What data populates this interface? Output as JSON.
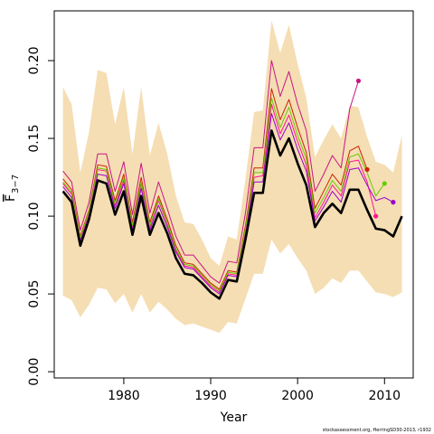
{
  "chart_data": {
    "type": "line",
    "xlabel": "Year",
    "ylabel_main": "F",
    "ylabel_sub": "3−7",
    "footnote": "stockassessment.org, HerringSD30-2013, r1932",
    "xlim": [
      1972,
      2013.3
    ],
    "ylim": [
      -0.004,
      0.232
    ],
    "x_ticks": [
      1980,
      1990,
      2000,
      2010
    ],
    "x_tick_labels": [
      "1980",
      "1990",
      "2000",
      "2010"
    ],
    "y_ticks": [
      0.0,
      0.05,
      0.1,
      0.15,
      0.2
    ],
    "y_tick_labels": [
      "0.00",
      "0.05",
      "0.10",
      "0.15",
      "0.20"
    ],
    "colors": {
      "band": "#f5deb3",
      "main": "#000000",
      "retro": [
        "#c71585",
        "#cc2200",
        "#ff1493",
        "#66cc00",
        "#9900cc"
      ]
    },
    "band": {
      "x": [
        1973,
        1974,
        1975,
        1976,
        1977,
        1978,
        1979,
        1980,
        1981,
        1982,
        1983,
        1984,
        1985,
        1986,
        1987,
        1988,
        1989,
        1990,
        1991,
        1992,
        1993,
        1994,
        1995,
        1996,
        1997,
        1998,
        1999,
        2000,
        2001,
        2002,
        2003,
        2004,
        2005,
        2006,
        2007,
        2008,
        2009,
        2010,
        2011,
        2012
      ],
      "upper": [
        0.183,
        0.172,
        0.128,
        0.154,
        0.194,
        0.192,
        0.159,
        0.183,
        0.14,
        0.183,
        0.139,
        0.16,
        0.14,
        0.113,
        0.096,
        0.095,
        0.085,
        0.073,
        0.068,
        0.087,
        0.085,
        0.124,
        0.167,
        0.168,
        0.226,
        0.205,
        0.223,
        0.198,
        0.176,
        0.138,
        0.149,
        0.159,
        0.15,
        0.171,
        0.17,
        0.151,
        0.135,
        0.133,
        0.128,
        0.152
      ],
      "lower": [
        0.049,
        0.046,
        0.035,
        0.043,
        0.054,
        0.053,
        0.044,
        0.05,
        0.038,
        0.05,
        0.038,
        0.045,
        0.04,
        0.034,
        0.03,
        0.031,
        0.029,
        0.027,
        0.025,
        0.032,
        0.031,
        0.047,
        0.063,
        0.063,
        0.085,
        0.076,
        0.082,
        0.073,
        0.065,
        0.05,
        0.054,
        0.06,
        0.057,
        0.065,
        0.065,
        0.058,
        0.051,
        0.05,
        0.048,
        0.051
      ]
    },
    "series": [
      {
        "role": "main",
        "x": [
          1973,
          1974,
          1975,
          1976,
          1977,
          1978,
          1979,
          1980,
          1981,
          1982,
          1983,
          1984,
          1985,
          1986,
          1987,
          1988,
          1989,
          1990,
          1991,
          1992,
          1993,
          1994,
          1995,
          1996,
          1997,
          1998,
          1999,
          2000,
          2001,
          2002,
          2003,
          2004,
          2005,
          2006,
          2007,
          2008,
          2009,
          2010,
          2011,
          2012
        ],
        "y": [
          0.116,
          0.109,
          0.081,
          0.098,
          0.123,
          0.121,
          0.101,
          0.116,
          0.088,
          0.113,
          0.088,
          0.102,
          0.089,
          0.073,
          0.063,
          0.062,
          0.057,
          0.051,
          0.047,
          0.059,
          0.058,
          0.085,
          0.115,
          0.115,
          0.155,
          0.139,
          0.15,
          0.134,
          0.12,
          0.093,
          0.102,
          0.108,
          0.102,
          0.117,
          0.117,
          0.104,
          0.092,
          0.091,
          0.087,
          0.1
        ]
      },
      {
        "role": "retro",
        "x": [
          1973,
          1974,
          1975,
          1976,
          1977,
          1978,
          1979,
          1980,
          1981,
          1982,
          1983,
          1984,
          1985,
          1986,
          1987,
          1988,
          1989,
          1990,
          1991,
          1992,
          1993,
          1994,
          1995,
          1996,
          1997,
          1998,
          1999,
          2000,
          2001,
          2002,
          2003,
          2004,
          2005,
          2006,
          2007
        ],
        "y": [
          0.129,
          0.122,
          0.091,
          0.109,
          0.14,
          0.14,
          0.116,
          0.135,
          0.101,
          0.134,
          0.102,
          0.122,
          0.105,
          0.087,
          0.075,
          0.075,
          0.068,
          0.061,
          0.057,
          0.071,
          0.07,
          0.102,
          0.144,
          0.144,
          0.2,
          0.177,
          0.193,
          0.172,
          0.155,
          0.116,
          0.127,
          0.139,
          0.131,
          0.169,
          0.187
        ]
      },
      {
        "role": "retro",
        "x": [
          1973,
          1974,
          1975,
          1976,
          1977,
          1978,
          1979,
          1980,
          1981,
          1982,
          1983,
          1984,
          1985,
          1986,
          1987,
          1988,
          1989,
          1990,
          1991,
          1992,
          1993,
          1994,
          1995,
          1996,
          1997,
          1998,
          1999,
          2000,
          2001,
          2002,
          2003,
          2004,
          2005,
          2006,
          2007,
          2008
        ],
        "y": [
          0.124,
          0.117,
          0.087,
          0.104,
          0.133,
          0.132,
          0.11,
          0.127,
          0.096,
          0.125,
          0.096,
          0.113,
          0.098,
          0.081,
          0.07,
          0.069,
          0.063,
          0.057,
          0.053,
          0.065,
          0.064,
          0.094,
          0.131,
          0.131,
          0.182,
          0.162,
          0.175,
          0.157,
          0.141,
          0.105,
          0.116,
          0.127,
          0.12,
          0.142,
          0.145,
          0.13
        ]
      },
      {
        "role": "retro",
        "x": [
          1973,
          1974,
          1975,
          1976,
          1977,
          1978,
          1979,
          1980,
          1981,
          1982,
          1983,
          1984,
          1985,
          1986,
          1987,
          1988,
          1989,
          1990,
          1991,
          1992,
          1993,
          1994,
          1995,
          1996,
          1997,
          1998,
          1999,
          2000,
          2001,
          2002,
          2003,
          2004,
          2005,
          2006,
          2007,
          2008,
          2009
        ],
        "y": [
          0.121,
          0.114,
          0.085,
          0.102,
          0.13,
          0.129,
          0.107,
          0.123,
          0.093,
          0.121,
          0.093,
          0.11,
          0.095,
          0.078,
          0.068,
          0.067,
          0.061,
          0.055,
          0.051,
          0.063,
          0.062,
          0.09,
          0.125,
          0.126,
          0.172,
          0.153,
          0.165,
          0.148,
          0.133,
          0.099,
          0.109,
          0.12,
          0.113,
          0.135,
          0.136,
          0.122,
          0.1
        ]
      },
      {
        "role": "retro",
        "x": [
          1973,
          1974,
          1975,
          1976,
          1977,
          1978,
          1979,
          1980,
          1981,
          1982,
          1983,
          1984,
          1985,
          1986,
          1987,
          1988,
          1989,
          1990,
          1991,
          1992,
          1993,
          1994,
          1995,
          1996,
          1997,
          1998,
          1999,
          2000,
          2001,
          2002,
          2003,
          2004,
          2005,
          2006,
          2007,
          2008,
          2009,
          2010
        ],
        "y": [
          0.122,
          0.115,
          0.086,
          0.103,
          0.131,
          0.13,
          0.108,
          0.125,
          0.094,
          0.122,
          0.094,
          0.111,
          0.096,
          0.079,
          0.069,
          0.068,
          0.062,
          0.056,
          0.052,
          0.064,
          0.063,
          0.092,
          0.128,
          0.128,
          0.176,
          0.157,
          0.17,
          0.152,
          0.137,
          0.102,
          0.112,
          0.123,
          0.116,
          0.138,
          0.14,
          0.128,
          0.113,
          0.121
        ]
      },
      {
        "role": "retro",
        "x": [
          1973,
          1974,
          1975,
          1976,
          1977,
          1978,
          1979,
          1980,
          1981,
          1982,
          1983,
          1984,
          1985,
          1986,
          1987,
          1988,
          1989,
          1990,
          1991,
          1992,
          1993,
          1994,
          1995,
          1996,
          1997,
          1998,
          1999,
          2000,
          2001,
          2002,
          2003,
          2004,
          2005,
          2006,
          2007,
          2008,
          2009,
          2010,
          2011
        ],
        "y": [
          0.119,
          0.112,
          0.084,
          0.1,
          0.127,
          0.126,
          0.105,
          0.121,
          0.091,
          0.118,
          0.091,
          0.107,
          0.093,
          0.077,
          0.067,
          0.066,
          0.06,
          0.054,
          0.05,
          0.062,
          0.061,
          0.088,
          0.122,
          0.122,
          0.166,
          0.149,
          0.16,
          0.143,
          0.129,
          0.097,
          0.106,
          0.116,
          0.109,
          0.13,
          0.131,
          0.12,
          0.11,
          0.112,
          0.109
        ]
      }
    ]
  }
}
